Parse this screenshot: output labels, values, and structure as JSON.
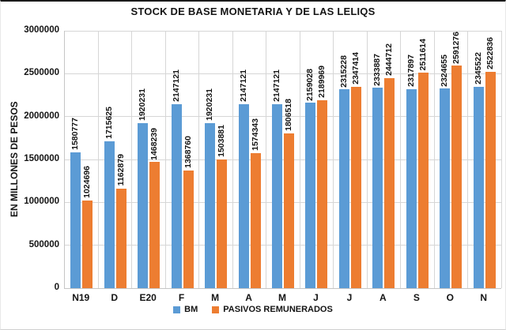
{
  "chart_data": {
    "type": "bar",
    "title": "STOCK DE BASE MONETARIA Y DE LAS LELIQS",
    "xlabel": "",
    "ylabel": "EN MILLONES DE PESOS",
    "categories": [
      "N19",
      "D",
      "E20",
      "F",
      "M",
      "A",
      "M",
      "J",
      "J",
      "A",
      "S",
      "O",
      "N"
    ],
    "series": [
      {
        "name": "BM",
        "color": "#5B9BD5",
        "values": [
          1580777,
          1715625,
          1920231,
          2147121,
          1920231,
          2147121,
          2147121,
          2159028,
          2315228,
          2333887,
          2317897,
          2324655,
          2345522
        ]
      },
      {
        "name": "PASIVOS REMUNERADOS",
        "color": "#ED7D31",
        "values": [
          1024696,
          1162879,
          1468239,
          1368760,
          1503881,
          1574343,
          1806518,
          2189969,
          2347414,
          2444712,
          2511614,
          2591276,
          2522836
        ]
      }
    ],
    "ylim": [
      0,
      3000000
    ],
    "ytick_step": 500000,
    "yticks": [
      "0",
      "500000",
      "1000000",
      "1500000",
      "2000000",
      "2500000",
      "3000000"
    ],
    "grid": true,
    "data_labels": true,
    "data_label_rotation": "vertical",
    "legend_position": "bottom"
  },
  "colors": {
    "grid": "#d6d6d6",
    "axis": "#c6c6c6",
    "text": "#141414"
  }
}
